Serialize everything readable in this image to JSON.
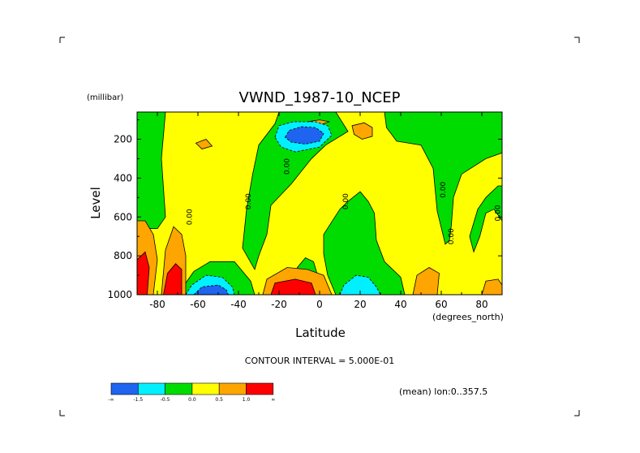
{
  "chart_data": {
    "type": "heatmap",
    "title": "VWND_1987-10_NCEP",
    "xlabel": "Latitude",
    "x_units": "(degrees_north)",
    "ylabel": "Level",
    "y_units": "(millibar)",
    "xlim": [
      -90,
      90
    ],
    "ylim": [
      1000,
      60
    ],
    "x_ticks": [
      "-80",
      "-60",
      "-40",
      "-20",
      "0",
      "20",
      "40",
      "60",
      "80"
    ],
    "x_tick_values": [
      -80,
      -60,
      -40,
      -20,
      0,
      20,
      40,
      60,
      80
    ],
    "y_ticks": [
      "200",
      "400",
      "600",
      "800",
      "1000"
    ],
    "y_tick_values": [
      200,
      400,
      600,
      800,
      1000
    ],
    "contour_interval": "CONTOUR INTERVAL = 5.000E-01",
    "footer_note": "(mean) lon:0..357.5",
    "contour_labels": [
      {
        "text": "0.00",
        "lat": -63,
        "lev": 600
      },
      {
        "text": "0.00",
        "lat": -34,
        "lev": 520
      },
      {
        "text": "0.00",
        "lat": -15,
        "lev": 340
      },
      {
        "text": "0.00",
        "lat": 14,
        "lev": 520
      },
      {
        "text": "0.00",
        "lat": 62,
        "lev": 460
      },
      {
        "text": "0.00",
        "lat": 66,
        "lev": 700
      },
      {
        "text": "0.00",
        "lat": 89,
        "lev": 580
      }
    ],
    "legend": {
      "colors": [
        "#1e64f0",
        "#00f0ff",
        "#00dc00",
        "#ffff00",
        "#ffa500",
        "#ff0000"
      ],
      "labels": [
        "-∞",
        "-1.5",
        "-0.5",
        "0.0",
        "0.5",
        "1.0",
        "∞"
      ]
    },
    "regions": [
      {
        "color": "#00dc00",
        "points": [
          [
            -90,
            60
          ],
          [
            -76,
            60
          ],
          [
            -78,
            300
          ],
          [
            -76,
            600
          ],
          [
            -80,
            660
          ],
          [
            -90,
            660
          ]
        ]
      },
      {
        "color": "#00dc00",
        "points": [
          [
            -62,
            880
          ],
          [
            -54,
            830
          ],
          [
            -42,
            830
          ],
          [
            -34,
            930
          ],
          [
            -32,
            1000
          ],
          [
            -68,
            1000
          ],
          [
            -66,
            940
          ]
        ]
      },
      {
        "color": "#00dc00",
        "points": [
          [
            -38,
            760
          ],
          [
            -36,
            560
          ],
          [
            -33,
            380
          ],
          [
            -30,
            230
          ],
          [
            -22,
            120
          ],
          [
            -20,
            60
          ],
          [
            8,
            60
          ],
          [
            14,
            160
          ],
          [
            3,
            230
          ],
          [
            -4,
            300
          ],
          [
            -14,
            430
          ],
          [
            -24,
            540
          ],
          [
            -26,
            690
          ],
          [
            -30,
            800
          ],
          [
            -32,
            870
          ]
        ]
      },
      {
        "color": "#00dc00",
        "points": [
          [
            -11,
            860
          ],
          [
            -7,
            810
          ],
          [
            -3,
            830
          ],
          [
            -1,
            900
          ],
          [
            -9,
            900
          ]
        ]
      },
      {
        "color": "#00dc00",
        "points": [
          [
            2,
            690
          ],
          [
            10,
            560
          ],
          [
            14,
            520
          ],
          [
            20,
            470
          ],
          [
            24,
            520
          ],
          [
            27,
            580
          ],
          [
            28,
            720
          ],
          [
            32,
            830
          ],
          [
            40,
            910
          ],
          [
            42,
            1000
          ],
          [
            8,
            1000
          ],
          [
            4,
            900
          ],
          [
            2,
            790
          ]
        ]
      },
      {
        "color": "#00dc00",
        "points": [
          [
            32,
            60
          ],
          [
            90,
            60
          ],
          [
            90,
            270
          ],
          [
            82,
            300
          ],
          [
            70,
            380
          ],
          [
            66,
            500
          ],
          [
            65,
            640
          ],
          [
            64,
            720
          ],
          [
            62,
            740
          ],
          [
            58,
            570
          ],
          [
            56,
            350
          ],
          [
            50,
            230
          ],
          [
            38,
            210
          ],
          [
            33,
            140
          ]
        ]
      },
      {
        "color": "#00dc00",
        "points": [
          [
            74,
            700
          ],
          [
            78,
            560
          ],
          [
            82,
            500
          ],
          [
            88,
            440
          ],
          [
            90,
            440
          ],
          [
            90,
            620
          ],
          [
            86,
            560
          ],
          [
            82,
            580
          ],
          [
            79,
            700
          ],
          [
            76,
            780
          ]
        ]
      },
      {
        "color": "#ffa500",
        "points": [
          [
            -90,
            620
          ],
          [
            -86,
            620
          ],
          [
            -82,
            690
          ],
          [
            -80,
            820
          ],
          [
            -82,
            1000
          ],
          [
            -90,
            1000
          ]
        ]
      },
      {
        "color": "#ffa500",
        "points": [
          [
            -78,
            1000
          ],
          [
            -76,
            770
          ],
          [
            -72,
            650
          ],
          [
            -68,
            690
          ],
          [
            -66,
            800
          ],
          [
            -66,
            1000
          ]
        ]
      },
      {
        "color": "#ffa500",
        "points": [
          [
            -28,
            1000
          ],
          [
            -26,
            920
          ],
          [
            -16,
            860
          ],
          [
            -6,
            870
          ],
          [
            2,
            900
          ],
          [
            6,
            1000
          ]
        ]
      },
      {
        "color": "#ffa500",
        "points": [
          [
            16,
            130
          ],
          [
            22,
            115
          ],
          [
            26,
            140
          ],
          [
            26,
            185
          ],
          [
            21,
            200
          ],
          [
            17,
            175
          ]
        ]
      },
      {
        "color": "#ffa500",
        "points": [
          [
            -61,
            220
          ],
          [
            -56,
            200
          ],
          [
            -53,
            235
          ],
          [
            -58,
            250
          ]
        ]
      },
      {
        "color": "#ffa500",
        "points": [
          [
            -6,
            110
          ],
          [
            0,
            100
          ],
          [
            5,
            110
          ],
          [
            0,
            125
          ]
        ]
      },
      {
        "color": "#ffa500",
        "points": [
          [
            46,
            1000
          ],
          [
            48,
            900
          ],
          [
            54,
            860
          ],
          [
            59,
            890
          ],
          [
            58,
            1000
          ]
        ]
      },
      {
        "color": "#ffa500",
        "points": [
          [
            80,
            1000
          ],
          [
            82,
            930
          ],
          [
            88,
            920
          ],
          [
            90,
            950
          ],
          [
            90,
            1000
          ]
        ]
      },
      {
        "color": "#ff0000",
        "points": [
          [
            -90,
            820
          ],
          [
            -86,
            780
          ],
          [
            -84,
            860
          ],
          [
            -85,
            1000
          ],
          [
            -90,
            1000
          ]
        ]
      },
      {
        "color": "#ff0000",
        "points": [
          [
            -77,
            1000
          ],
          [
            -75,
            890
          ],
          [
            -71,
            840
          ],
          [
            -68,
            870
          ],
          [
            -68,
            1000
          ]
        ]
      },
      {
        "color": "#ff0000",
        "points": [
          [
            -24,
            1000
          ],
          [
            -22,
            940
          ],
          [
            -12,
            920
          ],
          [
            -4,
            940
          ],
          [
            -2,
            1000
          ]
        ]
      },
      {
        "color": "#00f0ff",
        "points": [
          [
            -22,
            190
          ],
          [
            -20,
            130
          ],
          [
            -13,
            110
          ],
          [
            -2,
            110
          ],
          [
            4,
            130
          ],
          [
            6,
            180
          ],
          [
            0,
            240
          ],
          [
            -12,
            265
          ],
          [
            -19,
            240
          ]
        ]
      },
      {
        "color": "#00f0ff",
        "points": [
          [
            -66,
            1000
          ],
          [
            -63,
            950
          ],
          [
            -56,
            900
          ],
          [
            -48,
            910
          ],
          [
            -43,
            960
          ],
          [
            -42,
            1000
          ]
        ]
      },
      {
        "color": "#00f0ff",
        "points": [
          [
            10,
            1000
          ],
          [
            12,
            950
          ],
          [
            18,
            900
          ],
          [
            24,
            910
          ],
          [
            28,
            960
          ],
          [
            30,
            1000
          ]
        ]
      },
      {
        "color": "#1e64f0",
        "points": [
          [
            -17,
            190
          ],
          [
            -15,
            155
          ],
          [
            -9,
            135
          ],
          [
            -2,
            140
          ],
          [
            2,
            170
          ],
          [
            0,
            210
          ],
          [
            -7,
            225
          ],
          [
            -14,
            215
          ]
        ]
      },
      {
        "color": "#1e64f0",
        "points": [
          [
            -62,
            1000
          ],
          [
            -58,
            960
          ],
          [
            -50,
            950
          ],
          [
            -46,
            975
          ],
          [
            -45,
            1000
          ]
        ]
      }
    ]
  }
}
